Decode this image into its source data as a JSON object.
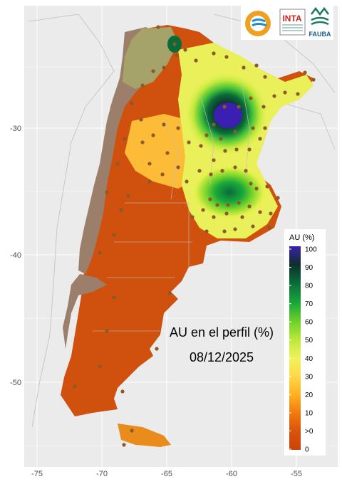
{
  "title_line1": "AU en el perfil (%)",
  "title_line2": "08/12/2025",
  "logos": {
    "inta": "INTA",
    "fauba": "FAUBA"
  },
  "legend": {
    "title": "AU (%)",
    "ticks": [
      "100",
      "90",
      "80",
      "70",
      "60",
      "50",
      "40",
      "30",
      "20",
      "10",
      ">0",
      "0"
    ],
    "colors": [
      "#3b1fb0",
      "#0f2f2a",
      "#0a6b3a",
      "#1aa83a",
      "#6fd12b",
      "#bde83a",
      "#f0f25e",
      "#ffd84a",
      "#ffb020",
      "#f07a10",
      "#d9530a",
      "#c9440a"
    ]
  },
  "axes": {
    "x_ticks": [
      "-75",
      "-70",
      "-65",
      "-60",
      "-55"
    ],
    "y_ticks": [
      "-30",
      "-40",
      "-50"
    ]
  },
  "colors": {
    "panel_bg": "#ebebeb",
    "grid": "#ffffff",
    "dry": "#d0500d",
    "no_data": "#9b7f6a",
    "station": "#8a5a2b",
    "country_outline": "#c8c8c8"
  }
}
